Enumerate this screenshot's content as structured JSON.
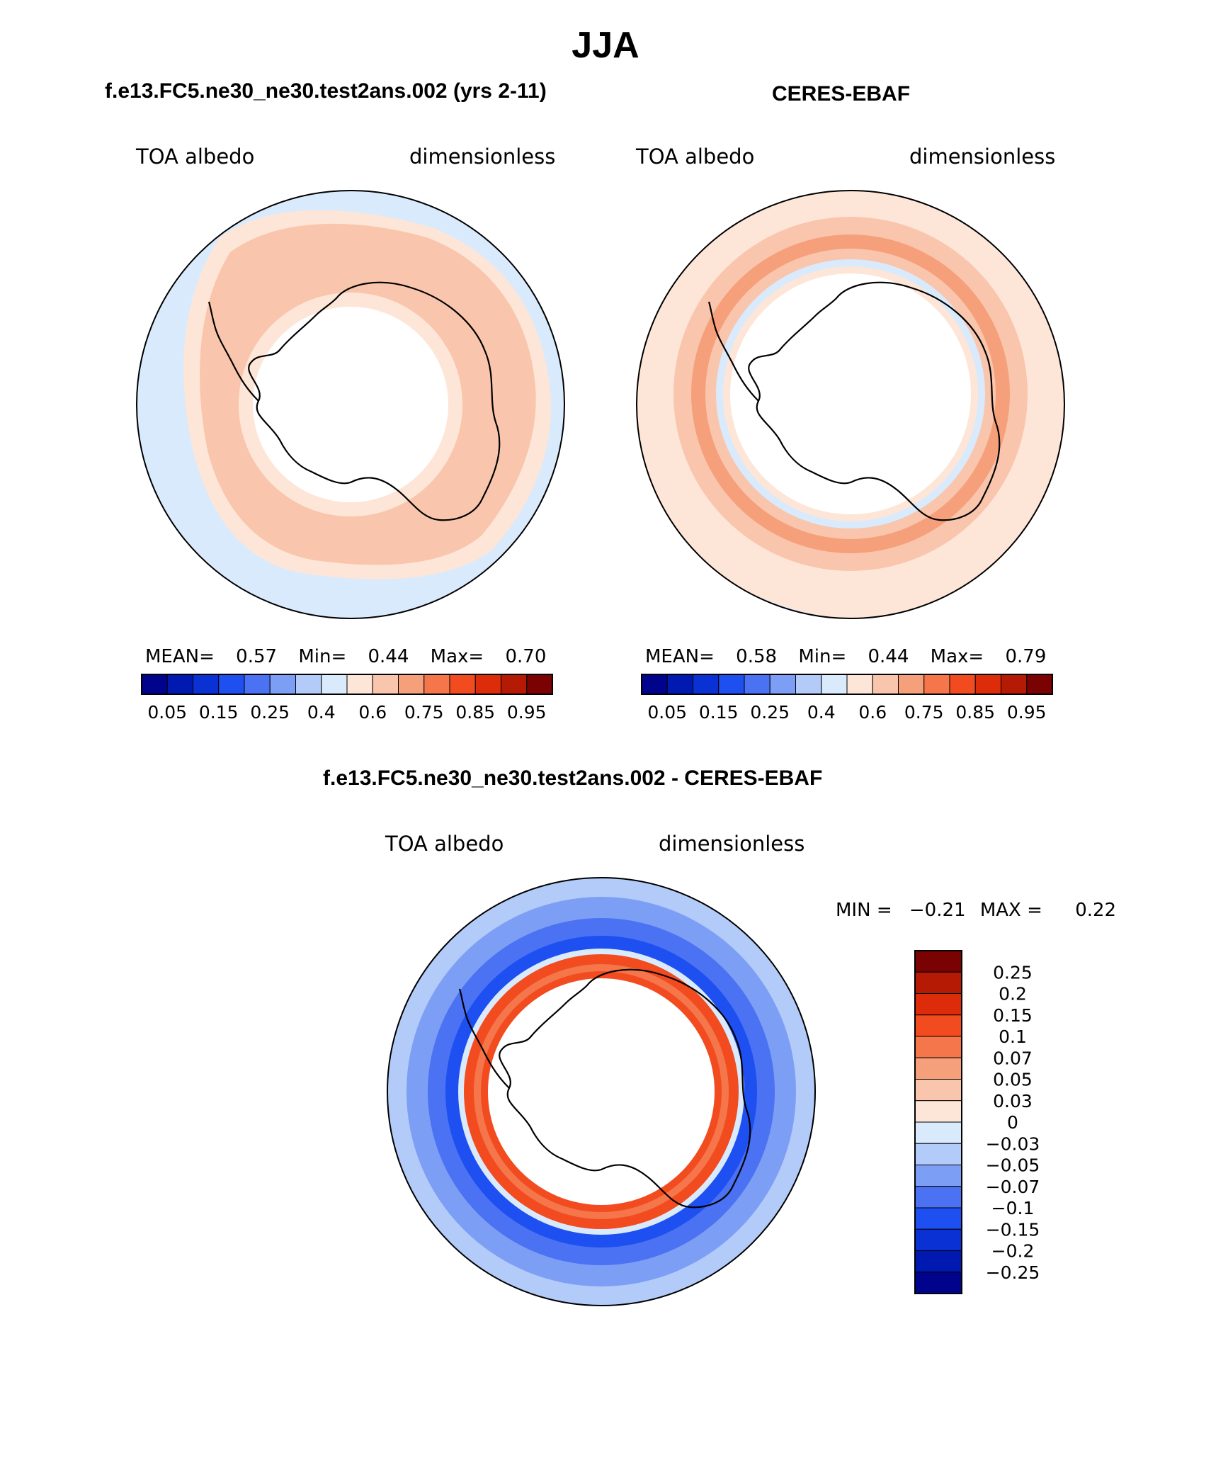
{
  "main_title": "JJA",
  "panels": [
    {
      "title": "f.e13.FC5.ne30_ne30.test2ans.002 (yrs 2-11)",
      "left_label": "TOA albedo",
      "right_label": "dimensionless",
      "stats": {
        "mean_label": "MEAN=",
        "mean": "0.57",
        "min_label": "Min=",
        "min": "0.44",
        "max_label": "Max=",
        "max": "0.70"
      }
    },
    {
      "title": "CERES-EBAF",
      "left_label": "TOA albedo",
      "right_label": "dimensionless",
      "stats": {
        "mean_label": "MEAN=",
        "mean": "0.58",
        "min_label": "Min=",
        "min": "0.44",
        "max_label": "Max=",
        "max": "0.79"
      }
    },
    {
      "title": "f.e13.FC5.ne30_ne30.test2ans.002 - CERES-EBAF",
      "left_label": "TOA albedo",
      "right_label": "dimensionless",
      "minmax": {
        "min_label": "MIN =",
        "min": "−0.21",
        "max_label": "MAX =",
        "max": "0.22"
      }
    }
  ],
  "abs_colorbar": {
    "colors": [
      "#00048c",
      "#0019b0",
      "#0a31d4",
      "#1e4ff0",
      "#4a72f2",
      "#7d9ef5",
      "#b3cbf9",
      "#d9eafc",
      "#fde6d8",
      "#f9c6ad",
      "#f6a07b",
      "#f4764a",
      "#f24b1f",
      "#dc2c0a",
      "#b51a04",
      "#7a0202"
    ],
    "tick_labels": [
      "0.05",
      "0.15",
      "0.25",
      "0.4",
      "0.6",
      "0.75",
      "0.85",
      "0.95"
    ]
  },
  "diff_colorbar": {
    "colors_top_to_bottom": [
      "#7a0202",
      "#b51a04",
      "#dc2c0a",
      "#f24b1f",
      "#f4764a",
      "#f6a07b",
      "#f9c6ad",
      "#fde6d8",
      "#d9eafc",
      "#b3cbf9",
      "#7d9ef5",
      "#4a72f2",
      "#1e4ff0",
      "#0a31d4",
      "#0019b0",
      "#00048c"
    ],
    "tick_labels": [
      "0.25",
      "0.2",
      "0.15",
      "0.1",
      "0.07",
      "0.05",
      "0.03",
      "0",
      "−0.03",
      "−0.05",
      "−0.07",
      "−0.1",
      "−0.15",
      "−0.2",
      "−0.25"
    ]
  },
  "map_colors": {
    "ocean_low": "#d9eafc",
    "albedo_mid": "#fde6d8",
    "albedo_high": "#f9c6ad",
    "albedo_higher": "#f6a07b",
    "diff_blue_dark": "#1e4ff0",
    "diff_blue_mid": "#4a72f2",
    "diff_blue_light": "#7d9ef5",
    "diff_red": "#f24b1f",
    "diff_red_light": "#f4764a"
  }
}
